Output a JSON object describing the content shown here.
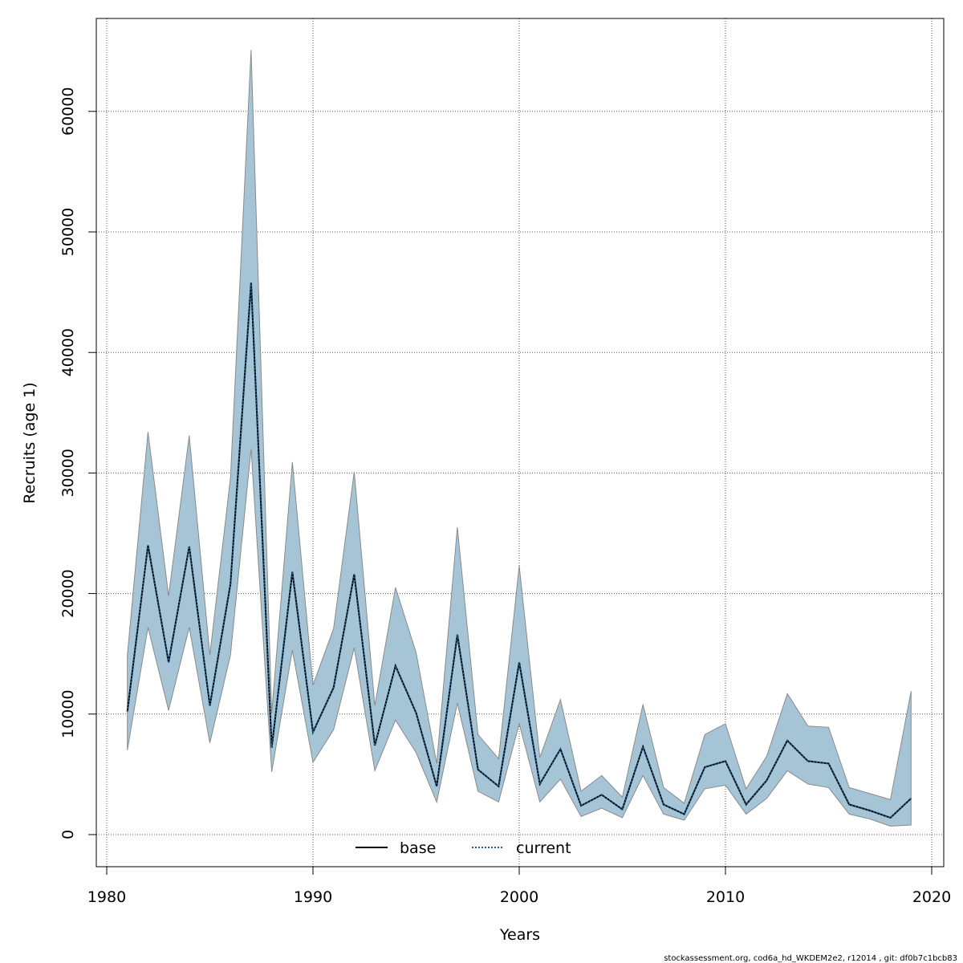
{
  "chart_data": {
    "type": "area",
    "xlabel": "Years",
    "ylabel": "Recruits (age 1)",
    "xlim": [
      1980,
      2020
    ],
    "ylim": [
      0,
      65000
    ],
    "x_ticks": [
      1980,
      1990,
      2000,
      2010,
      2020
    ],
    "y_ticks": [
      0,
      10000,
      20000,
      30000,
      40000,
      50000,
      60000
    ],
    "grid": true,
    "legend_position": "bottom-center",
    "colors": {
      "band": "#a5c5d6",
      "band_edge": "#8a8a8a",
      "base": "#000000",
      "current": "#1a5a8a"
    },
    "x": [
      1981,
      1982,
      1983,
      1984,
      1985,
      1986,
      1987,
      1988,
      1989,
      1990,
      1991,
      1992,
      1993,
      1994,
      1995,
      1996,
      1997,
      1998,
      1999,
      2000,
      2001,
      2002,
      2003,
      2004,
      2005,
      2006,
      2007,
      2008,
      2009,
      2010,
      2011,
      2012,
      2013,
      2014,
      2015,
      2016,
      2017,
      2018,
      2019
    ],
    "series": [
      {
        "name": "base",
        "line_style": "solid",
        "values": [
          10200,
          24000,
          14300,
          23900,
          10700,
          20800,
          45800,
          7200,
          21800,
          8500,
          12200,
          21600,
          7400,
          14000,
          10100,
          4000,
          16600,
          5400,
          4000,
          14300,
          4200,
          7100,
          2400,
          3300,
          2100,
          7300,
          2500,
          1700,
          5600,
          6100,
          2500,
          4500,
          7800,
          6100,
          5900,
          2500,
          2000,
          1400,
          3000
        ]
      },
      {
        "name": "current",
        "line_style": "dotted",
        "values": [
          10200,
          24000,
          14300,
          23900,
          10700,
          20800,
          45800,
          7200,
          21800,
          8500,
          12200,
          21600,
          7400,
          14000,
          10100,
          4000,
          16600,
          5400,
          4000,
          14300,
          4200,
          7100,
          2400,
          3300,
          2100,
          7300,
          2500,
          1700,
          5600,
          6100,
          2500,
          4500,
          7800,
          6100,
          5900,
          2500,
          2000,
          1400,
          3000
        ]
      }
    ],
    "confidence_band": {
      "lower": [
        7000,
        17200,
        10300,
        17200,
        7600,
        14900,
        32000,
        5200,
        15300,
        6000,
        8700,
        15500,
        5300,
        9500,
        6800,
        2700,
        10900,
        3600,
        2700,
        9200,
        2700,
        4600,
        1500,
        2200,
        1400,
        4900,
        1700,
        1200,
        3800,
        4100,
        1700,
        3000,
        5300,
        4200,
        3900,
        1700,
        1300,
        700,
        800
      ],
      "upper": [
        14900,
        33400,
        19800,
        33100,
        14900,
        29600,
        65100,
        10100,
        30900,
        12400,
        17100,
        30100,
        10700,
        20500,
        15100,
        5900,
        25500,
        8300,
        6300,
        22300,
        6400,
        11200,
        3600,
        4900,
        3100,
        10800,
        3900,
        2600,
        8300,
        9200,
        3800,
        6500,
        11700,
        9000,
        8900,
        3900,
        3400,
        2900,
        11900
      ]
    },
    "footer": "stockassessment.org, cod6a_hd_WKDEM2e2, r12014 , git: df0b7c1bcb83"
  }
}
